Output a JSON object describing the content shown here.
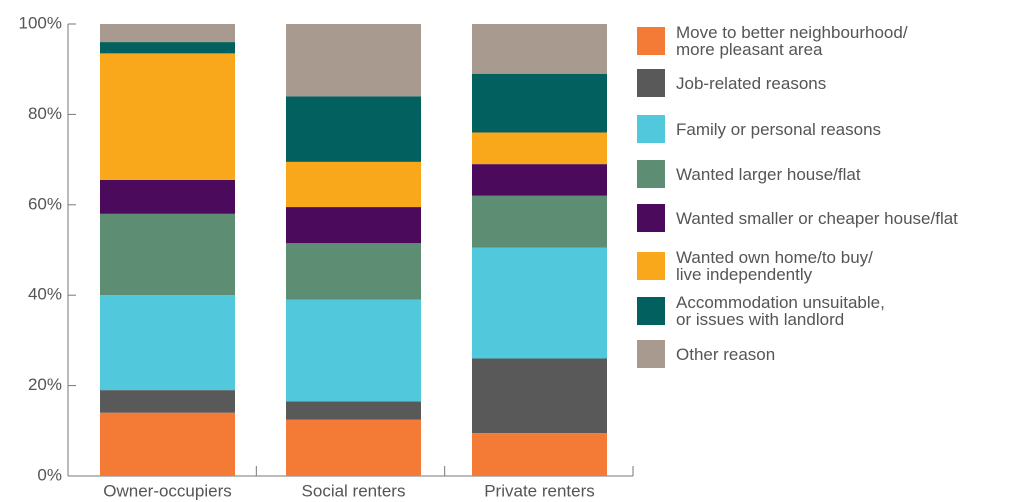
{
  "chart_data": {
    "type": "stacked-bar",
    "categories": [
      "Owner-occupiers",
      "Social renters",
      "Private renters"
    ],
    "series": [
      {
        "name": "Move to better neighbourhood/\nmore pleasant area",
        "color": "#f47b35",
        "values": [
          14,
          12.5,
          9.5
        ]
      },
      {
        "name": "Job-related reasons",
        "color": "#595959",
        "values": [
          5,
          4,
          16.5
        ]
      },
      {
        "name": "Family or personal reasons",
        "color": "#52c8dc",
        "values": [
          21,
          22.5,
          24.5
        ]
      },
      {
        "name": "Wanted larger house/flat",
        "color": "#5d8e74",
        "values": [
          18,
          12.5,
          11.5
        ]
      },
      {
        "name": "Wanted smaller or cheaper house/flat",
        "color": "#4b0a5c",
        "values": [
          7.5,
          8,
          7
        ]
      },
      {
        "name": "Wanted own home/to buy/\nlive independently",
        "color": "#f9a81b",
        "values": [
          28,
          10,
          7
        ]
      },
      {
        "name": "Accommodation unsuitable,\nor issues with landlord",
        "color": "#02605f",
        "values": [
          2.5,
          14.5,
          13
        ]
      },
      {
        "name": "Other reason",
        "color": "#a89a8e",
        "values": [
          4,
          16,
          11
        ]
      }
    ],
    "ylim": [
      0,
      100
    ],
    "yticks": [
      {
        "value": 0,
        "label": "0%"
      },
      {
        "value": 20,
        "label": "20%"
      },
      {
        "value": 40,
        "label": "40%"
      },
      {
        "value": 60,
        "label": "60%"
      },
      {
        "value": 80,
        "label": "80%"
      },
      {
        "value": 100,
        "label": "100%"
      }
    ]
  }
}
